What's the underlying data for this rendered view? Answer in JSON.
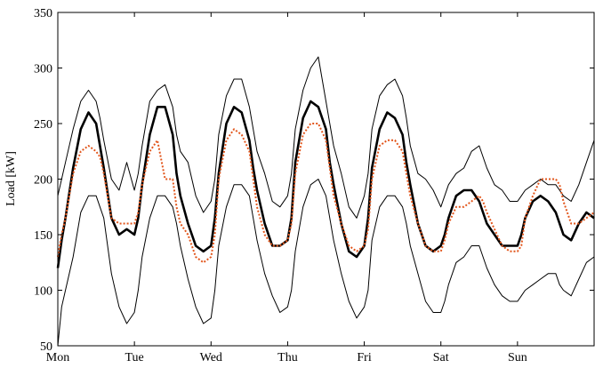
{
  "chart_data": {
    "type": "line",
    "title": "",
    "xlabel": "",
    "ylabel": "Load [kW]",
    "ylim": [
      50,
      350
    ],
    "yticks": [
      50,
      100,
      150,
      200,
      250,
      300,
      350
    ],
    "xlim": [
      0,
      7
    ],
    "xticks": [
      {
        "x": 0,
        "label": "Mon"
      },
      {
        "x": 1,
        "label": "Tue"
      },
      {
        "x": 2,
        "label": "Wed"
      },
      {
        "x": 3,
        "label": "Thu"
      },
      {
        "x": 4,
        "label": "Fri"
      },
      {
        "x": 5,
        "label": "Sat"
      },
      {
        "x": 6,
        "label": "Sun"
      }
    ],
    "grid": false,
    "legend": "none",
    "series": [
      {
        "role": "upper-bound",
        "color": "#000000",
        "style": "solid-thin",
        "x": [
          0.0,
          0.05,
          0.1,
          0.2,
          0.3,
          0.4,
          0.5,
          0.55,
          0.6,
          0.7,
          0.8,
          0.9,
          1.0,
          1.05,
          1.1,
          1.2,
          1.3,
          1.4,
          1.5,
          1.55,
          1.6,
          1.7,
          1.8,
          1.9,
          2.0,
          2.05,
          2.1,
          2.2,
          2.3,
          2.4,
          2.5,
          2.55,
          2.6,
          2.7,
          2.8,
          2.9,
          3.0,
          3.05,
          3.1,
          3.2,
          3.3,
          3.4,
          3.5,
          3.55,
          3.6,
          3.7,
          3.8,
          3.9,
          4.0,
          4.05,
          4.1,
          4.2,
          4.3,
          4.4,
          4.5,
          4.55,
          4.6,
          4.7,
          4.8,
          4.9,
          5.0,
          5.05,
          5.1,
          5.2,
          5.3,
          5.4,
          5.5,
          5.55,
          5.6,
          5.7,
          5.8,
          5.9,
          6.0,
          6.05,
          6.1,
          6.2,
          6.3,
          6.4,
          6.5,
          6.55,
          6.6,
          6.7,
          6.8,
          6.9,
          7.0
        ],
        "y": [
          185,
          200,
          215,
          245,
          270,
          280,
          270,
          255,
          235,
          200,
          190,
          215,
          190,
          205,
          230,
          270,
          280,
          285,
          265,
          240,
          225,
          215,
          185,
          170,
          180,
          200,
          240,
          275,
          290,
          290,
          265,
          245,
          225,
          205,
          180,
          175,
          185,
          205,
          245,
          280,
          300,
          310,
          270,
          250,
          230,
          205,
          175,
          165,
          185,
          205,
          245,
          275,
          285,
          290,
          275,
          255,
          230,
          205,
          200,
          190,
          175,
          185,
          195,
          205,
          210,
          225,
          230,
          220,
          210,
          195,
          190,
          180,
          180,
          185,
          190,
          195,
          200,
          195,
          195,
          190,
          185,
          180,
          195,
          215,
          235
        ]
      },
      {
        "role": "actual",
        "color": "#000000",
        "style": "solid-thick",
        "x": [
          0.0,
          0.05,
          0.1,
          0.2,
          0.3,
          0.4,
          0.5,
          0.55,
          0.6,
          0.7,
          0.8,
          0.9,
          1.0,
          1.05,
          1.1,
          1.2,
          1.3,
          1.4,
          1.5,
          1.55,
          1.6,
          1.7,
          1.8,
          1.9,
          2.0,
          2.05,
          2.1,
          2.2,
          2.3,
          2.4,
          2.5,
          2.55,
          2.6,
          2.7,
          2.8,
          2.9,
          3.0,
          3.05,
          3.1,
          3.2,
          3.3,
          3.4,
          3.5,
          3.55,
          3.6,
          3.7,
          3.8,
          3.9,
          4.0,
          4.05,
          4.1,
          4.2,
          4.3,
          4.4,
          4.5,
          4.55,
          4.6,
          4.7,
          4.8,
          4.9,
          5.0,
          5.05,
          5.1,
          5.2,
          5.3,
          5.4,
          5.5,
          5.55,
          5.6,
          5.7,
          5.8,
          5.9,
          6.0,
          6.05,
          6.1,
          6.2,
          6.3,
          6.4,
          6.5,
          6.55,
          6.6,
          6.7,
          6.8,
          6.9,
          7.0
        ],
        "y": [
          120,
          145,
          165,
          210,
          245,
          260,
          250,
          230,
          210,
          165,
          150,
          155,
          150,
          165,
          195,
          240,
          265,
          265,
          240,
          205,
          185,
          160,
          140,
          135,
          140,
          165,
          205,
          250,
          265,
          260,
          235,
          210,
          190,
          160,
          140,
          140,
          145,
          165,
          215,
          255,
          270,
          265,
          245,
          215,
          195,
          160,
          135,
          130,
          140,
          165,
          210,
          245,
          260,
          255,
          240,
          215,
          195,
          160,
          140,
          135,
          140,
          150,
          165,
          185,
          190,
          190,
          180,
          170,
          160,
          150,
          140,
          140,
          140,
          150,
          165,
          180,
          185,
          180,
          170,
          160,
          150,
          145,
          160,
          170,
          165
        ]
      },
      {
        "role": "forecast",
        "color": "#e2561c",
        "style": "dotted",
        "x": [
          0.0,
          0.05,
          0.1,
          0.2,
          0.3,
          0.4,
          0.5,
          0.55,
          0.6,
          0.7,
          0.8,
          0.9,
          1.0,
          1.05,
          1.1,
          1.2,
          1.3,
          1.4,
          1.5,
          1.55,
          1.6,
          1.7,
          1.8,
          1.9,
          2.0,
          2.05,
          2.1,
          2.2,
          2.3,
          2.4,
          2.5,
          2.55,
          2.6,
          2.7,
          2.8,
          2.9,
          3.0,
          3.05,
          3.1,
          3.2,
          3.3,
          3.4,
          3.5,
          3.55,
          3.6,
          3.7,
          3.8,
          3.9,
          4.0,
          4.05,
          4.1,
          4.2,
          4.3,
          4.4,
          4.5,
          4.55,
          4.6,
          4.7,
          4.8,
          4.9,
          5.0,
          5.05,
          5.1,
          5.2,
          5.3,
          5.4,
          5.5,
          5.55,
          5.6,
          5.7,
          5.8,
          5.9,
          6.0,
          6.05,
          6.1,
          6.2,
          6.3,
          6.4,
          6.5,
          6.55,
          6.6,
          6.7,
          6.8,
          6.9,
          7.0
        ],
        "y": [
          130,
          150,
          165,
          205,
          225,
          230,
          225,
          220,
          205,
          165,
          160,
          160,
          160,
          170,
          195,
          225,
          235,
          200,
          200,
          175,
          160,
          150,
          130,
          125,
          130,
          150,
          200,
          235,
          245,
          240,
          225,
          200,
          175,
          150,
          140,
          140,
          145,
          160,
          205,
          240,
          250,
          250,
          235,
          210,
          185,
          160,
          140,
          135,
          140,
          155,
          200,
          230,
          235,
          235,
          225,
          205,
          185,
          160,
          140,
          135,
          135,
          145,
          160,
          175,
          175,
          180,
          185,
          180,
          170,
          155,
          140,
          135,
          135,
          140,
          165,
          185,
          200,
          200,
          200,
          195,
          180,
          160,
          160,
          165,
          170
        ]
      },
      {
        "role": "lower-bound",
        "color": "#000000",
        "style": "solid-thin",
        "x": [
          0.0,
          0.05,
          0.1,
          0.2,
          0.3,
          0.4,
          0.5,
          0.55,
          0.6,
          0.7,
          0.8,
          0.9,
          1.0,
          1.05,
          1.1,
          1.2,
          1.3,
          1.4,
          1.5,
          1.55,
          1.6,
          1.7,
          1.8,
          1.9,
          2.0,
          2.05,
          2.1,
          2.2,
          2.3,
          2.4,
          2.5,
          2.55,
          2.6,
          2.7,
          2.8,
          2.9,
          3.0,
          3.05,
          3.1,
          3.2,
          3.3,
          3.4,
          3.5,
          3.55,
          3.6,
          3.7,
          3.8,
          3.9,
          4.0,
          4.05,
          4.1,
          4.2,
          4.3,
          4.4,
          4.5,
          4.55,
          4.6,
          4.7,
          4.8,
          4.9,
          5.0,
          5.05,
          5.1,
          5.2,
          5.3,
          5.4,
          5.5,
          5.55,
          5.6,
          5.7,
          5.8,
          5.9,
          6.0,
          6.05,
          6.1,
          6.2,
          6.3,
          6.4,
          6.5,
          6.55,
          6.6,
          6.7,
          6.8,
          6.9,
          7.0
        ],
        "y": [
          50,
          85,
          100,
          130,
          170,
          185,
          185,
          175,
          165,
          115,
          85,
          70,
          80,
          100,
          130,
          165,
          185,
          185,
          175,
          160,
          140,
          110,
          85,
          70,
          75,
          100,
          140,
          175,
          195,
          195,
          185,
          165,
          145,
          115,
          95,
          80,
          85,
          100,
          135,
          175,
          195,
          200,
          185,
          165,
          145,
          115,
          90,
          75,
          85,
          100,
          145,
          175,
          185,
          185,
          175,
          160,
          140,
          115,
          90,
          80,
          80,
          90,
          105,
          125,
          130,
          140,
          140,
          130,
          120,
          105,
          95,
          90,
          90,
          95,
          100,
          105,
          110,
          115,
          115,
          105,
          100,
          95,
          110,
          125,
          130
        ]
      }
    ]
  }
}
